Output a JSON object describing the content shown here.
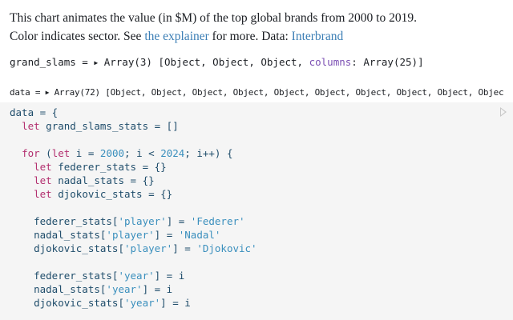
{
  "intro": {
    "line1": "This chart animates the value (in $M) of the top global brands from 2000 to 2019.",
    "line2_pre": "Color indicates sector. See ",
    "explainer_link": "the explainer",
    "line2_mid": " for more. Data: ",
    "interbrand_link": "Interbrand"
  },
  "outputs": {
    "grand_slams": {
      "name": "grand_slams = ",
      "summary": "Array(3) [Object, Object, Object, ",
      "key": "columns",
      "rest": ": Array(25)]"
    },
    "data": {
      "name": "data = ",
      "summary": "Array(72) [Object, Object, Object, Object, Object, Object, Object, Object, Object, Objec"
    }
  },
  "code_cell": {
    "run_icon": "play-icon",
    "lines": [
      [
        [
          "id",
          "data = {"
        ]
      ],
      [
        [
          "id",
          "  "
        ],
        [
          "kw",
          "let"
        ],
        [
          "id",
          " grand_slams_stats = []"
        ]
      ],
      [],
      [
        [
          "id",
          "  "
        ],
        [
          "kw",
          "for"
        ],
        [
          "id",
          " ("
        ],
        [
          "kw",
          "let"
        ],
        [
          "id",
          " i = "
        ],
        [
          "num",
          "2000"
        ],
        [
          "id",
          "; i < "
        ],
        [
          "num",
          "2024"
        ],
        [
          "id",
          "; i++) {"
        ]
      ],
      [
        [
          "id",
          "    "
        ],
        [
          "kw",
          "let"
        ],
        [
          "id",
          " federer_stats = {}"
        ]
      ],
      [
        [
          "id",
          "    "
        ],
        [
          "kw",
          "let"
        ],
        [
          "id",
          " nadal_stats = {}"
        ]
      ],
      [
        [
          "id",
          "    "
        ],
        [
          "kw",
          "let"
        ],
        [
          "id",
          " djokovic_stats = {}"
        ]
      ],
      [],
      [
        [
          "id",
          "    federer_stats["
        ],
        [
          "str",
          "'player'"
        ],
        [
          "id",
          "] = "
        ],
        [
          "str",
          "'Federer'"
        ]
      ],
      [
        [
          "id",
          "    nadal_stats["
        ],
        [
          "str",
          "'player'"
        ],
        [
          "id",
          "] = "
        ],
        [
          "str",
          "'Nadal'"
        ]
      ],
      [
        [
          "id",
          "    djokovic_stats["
        ],
        [
          "str",
          "'player'"
        ],
        [
          "id",
          "] = "
        ],
        [
          "str",
          "'Djokovic'"
        ]
      ],
      [],
      [
        [
          "id",
          "    federer_stats["
        ],
        [
          "str",
          "'year'"
        ],
        [
          "id",
          "] = i"
        ]
      ],
      [
        [
          "id",
          "    nadal_stats["
        ],
        [
          "str",
          "'year'"
        ],
        [
          "id",
          "] = i"
        ]
      ],
      [
        [
          "id",
          "    djokovic_stats["
        ],
        [
          "str",
          "'year'"
        ],
        [
          "id",
          "] = i"
        ]
      ]
    ]
  }
}
